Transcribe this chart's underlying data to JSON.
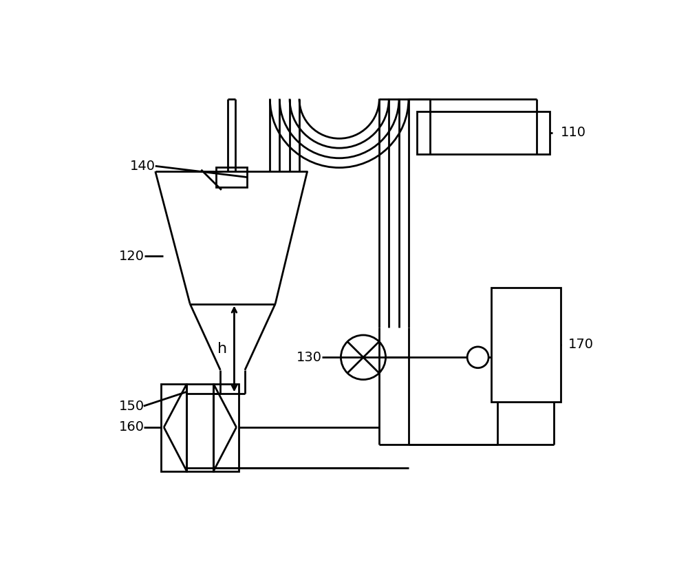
{
  "bg_color": "#ffffff",
  "lc": "#000000",
  "lw": 2.0,
  "fs": 14,
  "figsize": [
    10.0,
    8.24
  ],
  "dpi": 100
}
